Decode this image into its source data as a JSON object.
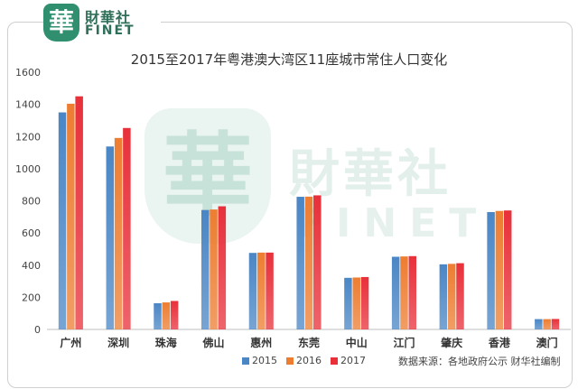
{
  "logo": {
    "badge": "華",
    "name_cn": "財華社",
    "name_en": "FINET"
  },
  "watermark": {
    "badge": "華",
    "name_cn": "財華社",
    "name_en": "FINET"
  },
  "source": "数据来源：各地政府公示   财华社编制",
  "chart_data": {
    "type": "bar",
    "title": "2015至2017年粤港澳大湾区11座城市常住人口变化",
    "xlabel": "",
    "ylabel": "",
    "ylim": [
      0,
      1600
    ],
    "yticks": [
      0,
      200,
      400,
      600,
      800,
      1000,
      1200,
      1400,
      1600
    ],
    "grid": false,
    "legend_position": "bottom",
    "categories": [
      "广州",
      "深圳",
      "珠海",
      "佛山",
      "惠州",
      "东莞",
      "中山",
      "江门",
      "肇庆",
      "香港",
      "澳门"
    ],
    "series": [
      {
        "name": "2015",
        "color": "#4a86c5",
        "values": [
          1350,
          1138,
          163,
          743,
          476,
          825,
          321,
          452,
          405,
          730,
          64
        ]
      },
      {
        "name": "2016",
        "color": "#ed7d31",
        "values": [
          1404,
          1191,
          168,
          746,
          478,
          826,
          323,
          454,
          408,
          737,
          64
        ]
      },
      {
        "name": "2017",
        "color": "#e8303a",
        "values": [
          1450,
          1253,
          177,
          766,
          478,
          834,
          326,
          456,
          412,
          740,
          65
        ]
      }
    ]
  }
}
